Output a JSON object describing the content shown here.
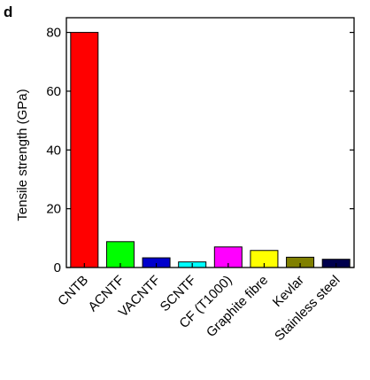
{
  "panel_label": "d",
  "chart_data": {
    "type": "bar",
    "categories": [
      "CNTB",
      "ACNTF",
      "VACNTF",
      "SCNTF",
      "CF (T1000)",
      "Graphite fibre",
      "Kevlar",
      "Stainless steel"
    ],
    "values": [
      80,
      8.8,
      3.3,
      1.9,
      7.0,
      5.8,
      3.5,
      2.8
    ],
    "colors": [
      "#ff0000",
      "#00ff00",
      "#0000cc",
      "#00ffff",
      "#ff00ff",
      "#ffff00",
      "#808000",
      "#00004d"
    ],
    "title": "",
    "xlabel": "",
    "ylabel": "Tensile strength (GPa)",
    "ylim": [
      0,
      85
    ],
    "yticks": [
      0,
      20,
      40,
      60,
      80
    ],
    "grid": false,
    "legend": "none"
  }
}
